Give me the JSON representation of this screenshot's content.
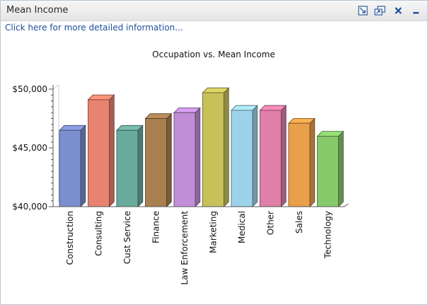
{
  "window": {
    "title": "Mean Income",
    "controls": [
      "edit-icon",
      "maximize-icon",
      "close-icon",
      "minimize-icon"
    ]
  },
  "details_link": "Click here for more detailed information...",
  "chart_data": {
    "type": "bar",
    "title": "Occupation vs. Mean Income",
    "xlabel": "",
    "ylabel": "",
    "ylim": [
      40000,
      50000
    ],
    "yticks": [
      "$40,000",
      "$45,000",
      "$50,000"
    ],
    "categories": [
      "Construction",
      "Consulting",
      "Cust Service",
      "Finance",
      "Law Enforcement",
      "Marketing",
      "Medical",
      "Other",
      "Sales",
      "Technology"
    ],
    "values": [
      46500,
      49100,
      46500,
      47500,
      48000,
      49700,
      48200,
      48200,
      47100,
      46000
    ],
    "colors": [
      "#7b8fcf",
      "#e88370",
      "#6aaa9d",
      "#a8804f",
      "#c28ed8",
      "#c8c15a",
      "#9dd3ea",
      "#e07fa8",
      "#e9a04a",
      "#86c96a"
    ],
    "grid": false
  }
}
